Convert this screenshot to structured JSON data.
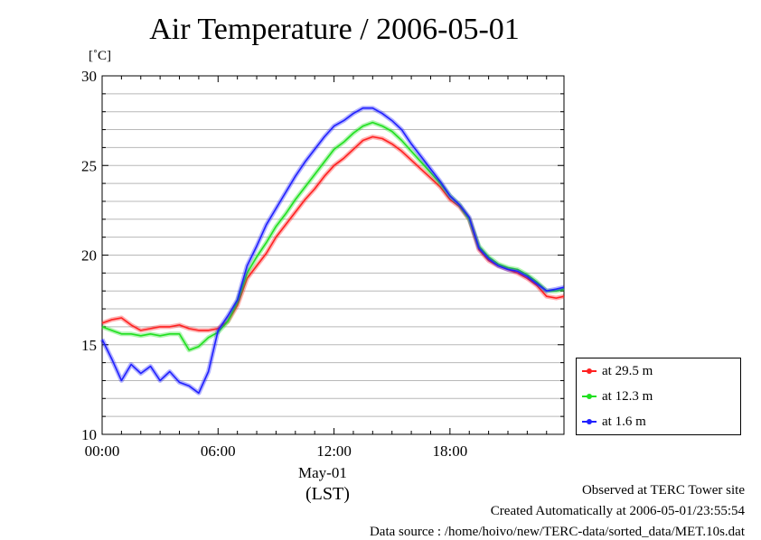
{
  "page": {
    "title": "Air Temperature / 2006-05-01",
    "unit": "[˚C]",
    "date_label": "May-01",
    "time_zone_label": "(LST)",
    "footer": {
      "site": "Observed at TERC Tower site",
      "created": "Created Automatically at 2006-05-01/23:55:54",
      "source": "Data source : /home/hoivo/new/TERC-data/sorted_data/MET.10s.dat"
    }
  },
  "chart_data": {
    "type": "line",
    "title": "Air Temperature / 2006-05-01",
    "ylabel": "[˚C]",
    "xlabel": "(LST)",
    "xlim": [
      0,
      23.9
    ],
    "ylim": [
      10,
      30
    ],
    "x_ticks": [
      0,
      6,
      12,
      18
    ],
    "x_tick_labels": [
      "00:00",
      "06:00",
      "12:00",
      "18:00"
    ],
    "y_ticks": [
      10,
      15,
      20,
      25,
      30
    ],
    "y_tick_labels": [
      "10",
      "15",
      "20",
      "25",
      "30"
    ],
    "grid": true,
    "legend_position": "bottom-right",
    "series": [
      {
        "name": "at 29.5 m",
        "color": "#ff2020",
        "x": [
          0,
          0.5,
          1,
          1.5,
          2,
          2.5,
          3,
          3.5,
          4,
          4.5,
          5,
          5.5,
          6,
          6.5,
          7,
          7.5,
          8,
          8.5,
          9,
          9.5,
          10,
          10.5,
          11,
          11.5,
          12,
          12.5,
          13,
          13.5,
          14,
          14.5,
          15,
          15.5,
          16,
          16.5,
          17,
          17.5,
          18,
          18.5,
          19,
          19.5,
          20,
          20.5,
          21,
          21.5,
          22,
          22.5,
          23,
          23.5,
          23.9
        ],
        "y": [
          16.2,
          16.4,
          16.5,
          16.1,
          15.8,
          15.9,
          16.0,
          16.0,
          16.1,
          15.9,
          15.8,
          15.8,
          15.9,
          16.3,
          17.2,
          18.7,
          19.4,
          20.1,
          21.0,
          21.7,
          22.4,
          23.1,
          23.7,
          24.4,
          25.0,
          25.4,
          25.9,
          26.4,
          26.6,
          26.5,
          26.2,
          25.8,
          25.3,
          24.8,
          24.3,
          23.8,
          23.1,
          22.7,
          22.0,
          20.3,
          19.7,
          19.4,
          19.2,
          19.0,
          18.7,
          18.3,
          17.7,
          17.6,
          17.7
        ]
      },
      {
        "name": "at 12.3 m",
        "color": "#20e020",
        "x": [
          0,
          0.5,
          1,
          1.5,
          2,
          2.5,
          3,
          3.5,
          4,
          4.5,
          5,
          5.5,
          6,
          6.5,
          7,
          7.5,
          8,
          8.5,
          9,
          9.5,
          10,
          10.5,
          11,
          11.5,
          12,
          12.5,
          13,
          13.5,
          14,
          14.5,
          15,
          15.5,
          16,
          16.5,
          17,
          17.5,
          18,
          18.5,
          19,
          19.5,
          20,
          20.5,
          21,
          21.5,
          22,
          22.5,
          23,
          23.5,
          23.9
        ],
        "y": [
          16.0,
          15.8,
          15.6,
          15.6,
          15.5,
          15.6,
          15.5,
          15.6,
          15.6,
          14.7,
          14.9,
          15.4,
          15.7,
          16.3,
          17.4,
          19.0,
          19.9,
          20.7,
          21.6,
          22.3,
          23.1,
          23.8,
          24.5,
          25.2,
          25.9,
          26.3,
          26.8,
          27.2,
          27.4,
          27.2,
          26.9,
          26.4,
          25.8,
          25.2,
          24.6,
          24.0,
          23.3,
          22.8,
          22.0,
          20.5,
          19.9,
          19.5,
          19.3,
          19.2,
          18.9,
          18.5,
          18.0,
          18.0,
          18.1
        ]
      },
      {
        "name": "at 1.6 m",
        "color": "#2020ff",
        "x": [
          0,
          0.5,
          1,
          1.5,
          2,
          2.5,
          3,
          3.5,
          4,
          4.5,
          5,
          5.5,
          6,
          6.5,
          7,
          7.5,
          8,
          8.5,
          9,
          9.5,
          10,
          10.5,
          11,
          11.5,
          12,
          12.5,
          13,
          13.5,
          14,
          14.5,
          15,
          15.5,
          16,
          16.5,
          17,
          17.5,
          18,
          18.5,
          19,
          19.5,
          20,
          20.5,
          21,
          21.5,
          22,
          22.5,
          23,
          23.5,
          23.9
        ],
        "y": [
          15.3,
          14.2,
          13.0,
          13.9,
          13.4,
          13.8,
          13.0,
          13.5,
          12.9,
          12.7,
          12.3,
          13.5,
          15.8,
          16.6,
          17.5,
          19.4,
          20.5,
          21.7,
          22.6,
          23.5,
          24.4,
          25.2,
          25.9,
          26.6,
          27.2,
          27.5,
          27.9,
          28.2,
          28.2,
          27.9,
          27.5,
          27.0,
          26.2,
          25.5,
          24.8,
          24.1,
          23.3,
          22.8,
          22.1,
          20.4,
          19.8,
          19.4,
          19.2,
          19.1,
          18.8,
          18.4,
          18.0,
          18.1,
          18.2
        ]
      }
    ]
  }
}
